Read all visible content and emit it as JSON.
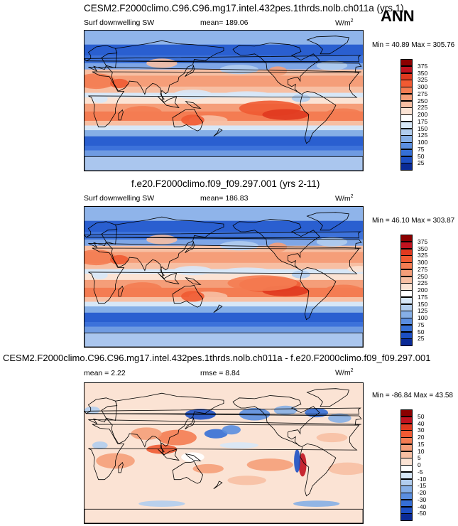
{
  "annual_tag": "ANN",
  "units_base": "W/m",
  "units_exp": "2",
  "min_label": "Min = ",
  "max_label": "Max = ",
  "panels": [
    {
      "title": "CESM2.F2000climo.C96.C96.mg17.intel.432pes.1thrds.nolb.ch011a (yrs 1)",
      "left_label": "Surf downwelling SW",
      "center_label": "mean= 189.06",
      "right_label": "",
      "min": "40.89",
      "max": "305.76"
    },
    {
      "title": "f.e20.F2000climo.f09_f09.297.001 (yrs 2-11)",
      "left_label": "Surf downwelling SW",
      "center_label": "mean= 186.83",
      "right_label": "",
      "min": "46.10",
      "max": "303.87"
    },
    {
      "title": "CESM2.F2000climo.C96.C96.mg17.intel.432pes.1thrds.nolb.ch011a - f.e20.F2000climo.f09_f09.297.001",
      "left_label": "mean =  2.22",
      "center_label": "rmse =  8.84",
      "right_label": "",
      "min": "-86.84",
      "max": "43.58"
    }
  ],
  "colorbar_abs": {
    "labels": [
      "375",
      "350",
      "325",
      "300",
      "275",
      "250",
      "225",
      "200",
      "175",
      "150",
      "125",
      "100",
      "75",
      "50",
      "25"
    ],
    "colors": [
      "#8b0000",
      "#c1121f",
      "#e0391f",
      "#f05a32",
      "#f47c52",
      "#f59e79",
      "#f7bfa3",
      "#fbe3d4",
      "#ffffff",
      "#d7e7f7",
      "#b1cdee",
      "#86afe6",
      "#5a8ee0",
      "#356fd6",
      "#1c4fc4",
      "#0a2a96"
    ]
  },
  "colorbar_diff": {
    "labels": [
      "50",
      "40",
      "30",
      "20",
      "15",
      "10",
      "5",
      "0",
      "-5",
      "-10",
      "-15",
      "-20",
      "-30",
      "-40",
      "-50"
    ],
    "colors": [
      "#8b0000",
      "#c1121f",
      "#e0391f",
      "#f05a32",
      "#f47c52",
      "#f59e79",
      "#f7bfa3",
      "#fbe3d4",
      "#ffffff",
      "#d7e7f7",
      "#b1cdee",
      "#86afe6",
      "#5a8ee0",
      "#356fd6",
      "#1c4fc4",
      "#0a2a96"
    ]
  },
  "chart_data": [
    {
      "type": "heatmap",
      "title": "CESM2.F2000climo.C96.C96.mg17.intel.432pes.1thrds.nolb.ch011a (yrs 1)",
      "variable": "Surf downwelling SW",
      "units": "W/m2",
      "mean": 189.06,
      "min": 40.89,
      "max": 305.76,
      "levels": [
        25,
        50,
        75,
        100,
        125,
        150,
        175,
        200,
        225,
        250,
        275,
        300,
        325,
        350,
        375
      ]
    },
    {
      "type": "heatmap",
      "title": "f.e20.F2000climo.f09_f09.297.001 (yrs 2-11)",
      "variable": "Surf downwelling SW",
      "units": "W/m2",
      "mean": 186.83,
      "min": 46.1,
      "max": 303.87,
      "levels": [
        25,
        50,
        75,
        100,
        125,
        150,
        175,
        200,
        225,
        250,
        275,
        300,
        325,
        350,
        375
      ]
    },
    {
      "type": "heatmap",
      "title": "CESM2.F2000climo.C96.C96.mg17.intel.432pes.1thrds.nolb.ch011a - f.e20.F2000climo.f09_f09.297.001",
      "units": "W/m2",
      "mean": 2.22,
      "rmse": 8.84,
      "min": -86.84,
      "max": 43.58,
      "levels": [
        -50,
        -40,
        -30,
        -20,
        -15,
        -10,
        -5,
        0,
        5,
        10,
        15,
        20,
        30,
        40,
        50
      ]
    }
  ]
}
